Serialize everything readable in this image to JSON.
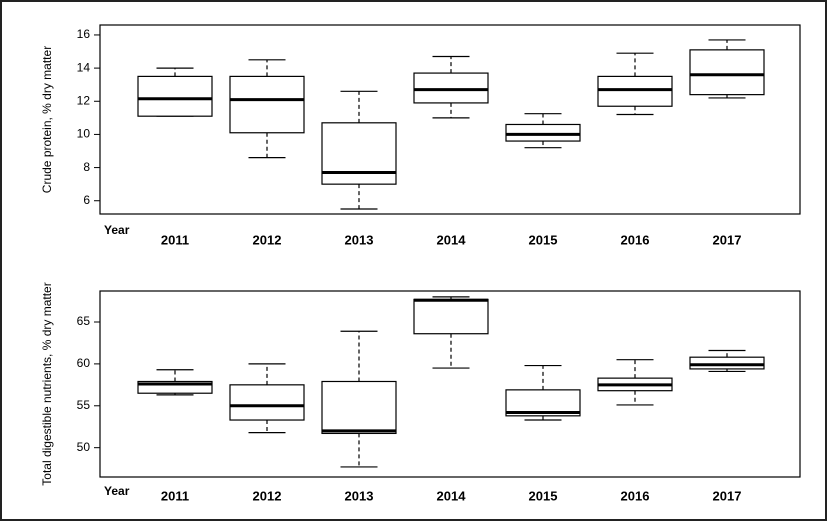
{
  "chart_data": [
    {
      "type": "box",
      "ylabel": "Crude protein, % dry matter",
      "xlabel": "Year",
      "categories": [
        "2011",
        "2012",
        "2013",
        "2014",
        "2015",
        "2016",
        "2017"
      ],
      "min": [
        11.1,
        8.6,
        5.5,
        11.0,
        9.2,
        11.2,
        12.2
      ],
      "q1": [
        11.1,
        10.1,
        7.0,
        11.9,
        9.6,
        11.7,
        12.4
      ],
      "median": [
        12.15,
        12.1,
        7.7,
        12.7,
        10.0,
        12.7,
        13.6
      ],
      "q3": [
        13.5,
        13.5,
        10.7,
        13.7,
        10.6,
        13.5,
        15.1
      ],
      "max": [
        14.0,
        14.5,
        12.6,
        14.7,
        11.25,
        14.9,
        15.7
      ],
      "color": "#000000",
      "ylim": [
        5.2,
        16.6
      ],
      "yticks": [
        6,
        8,
        10,
        12,
        14,
        16
      ]
    },
    {
      "type": "box",
      "ylabel": "Total digestible nutrients, % dry matter",
      "xlabel": "Year",
      "categories": [
        "2011",
        "2012",
        "2013",
        "2014",
        "2015",
        "2016",
        "2017"
      ],
      "min": [
        56.3,
        51.8,
        47.7,
        59.5,
        53.3,
        55.1,
        59.1
      ],
      "q1": [
        56.5,
        53.3,
        51.7,
        63.6,
        53.8,
        56.8,
        59.4
      ],
      "median": [
        57.6,
        55.0,
        52.0,
        67.6,
        54.2,
        57.5,
        59.9
      ],
      "q3": [
        57.9,
        57.5,
        57.9,
        67.7,
        56.9,
        58.3,
        60.8
      ],
      "max": [
        59.3,
        60.0,
        63.9,
        68.0,
        59.8,
        60.5,
        61.6
      ],
      "color": "#000000",
      "ylim": [
        46.5,
        68.7
      ],
      "yticks": [
        50,
        55,
        60,
        65
      ]
    }
  ]
}
